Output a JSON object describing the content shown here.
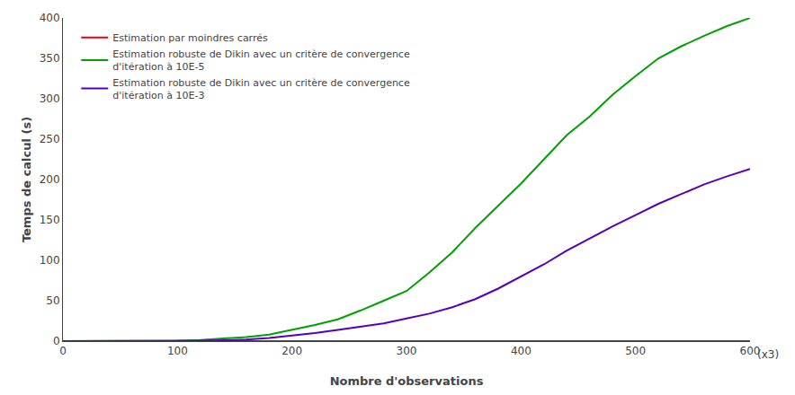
{
  "chart_data": {
    "type": "line",
    "title": "",
    "xlabel": "Nombre d'observations",
    "ylabel": "Temps de calcul (s)",
    "annotations": [
      "(x3)"
    ],
    "xlim": [
      0,
      600
    ],
    "ylim": [
      0,
      400
    ],
    "xticks": [
      0,
      100,
      200,
      300,
      400,
      500,
      600
    ],
    "yticks": [
      0,
      50,
      100,
      150,
      200,
      250,
      300,
      350,
      400
    ],
    "grid": false,
    "legend": "upper left",
    "series": [
      {
        "name": "Estimation par moindres carrés",
        "color": "#e8000e",
        "x": [
          0,
          50,
          100,
          150,
          200,
          250,
          300,
          350,
          400,
          450,
          500,
          550,
          600
        ],
        "values": [
          0,
          0,
          0,
          0,
          0,
          0,
          0,
          0,
          0,
          0,
          0,
          0,
          0
        ]
      },
      {
        "name": "Estimation robuste de Dikin avec un critère de convergence\nd'itération à 10E-5",
        "color": "#00a000",
        "x": [
          0,
          50,
          80,
          100,
          120,
          140,
          160,
          180,
          200,
          220,
          240,
          260,
          280,
          300,
          320,
          340,
          360,
          380,
          400,
          420,
          440,
          460,
          480,
          500,
          520,
          540,
          560,
          580,
          600
        ],
        "values": [
          0,
          0,
          0,
          0.5,
          1.5,
          3,
          5,
          8,
          14,
          20,
          27,
          38,
          50,
          62,
          85,
          110,
          140,
          168,
          195,
          225,
          255,
          278,
          305,
          328,
          350,
          365,
          378,
          390,
          400
        ]
      },
      {
        "name": "Estimation robuste de Dikin avec un critère de convergence\nd'itération à 10E-3",
        "color": "#5500bb",
        "x": [
          0,
          50,
          80,
          100,
          120,
          140,
          160,
          180,
          200,
          220,
          240,
          260,
          280,
          300,
          320,
          340,
          360,
          380,
          400,
          420,
          440,
          460,
          480,
          500,
          520,
          540,
          560,
          580,
          600
        ],
        "values": [
          0,
          0,
          0,
          0,
          0.5,
          1,
          2,
          4,
          7,
          10,
          14,
          18,
          22,
          28,
          34,
          42,
          52,
          65,
          80,
          95,
          112,
          127,
          142,
          156,
          170,
          182,
          194,
          204,
          213
        ]
      }
    ]
  }
}
